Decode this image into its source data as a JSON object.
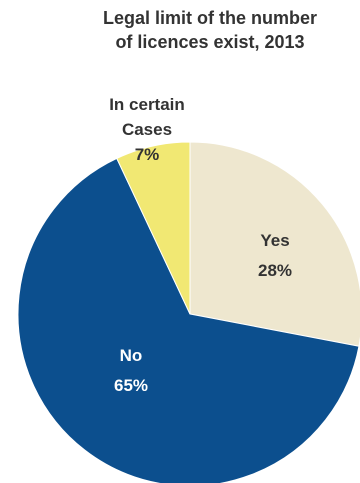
{
  "chart_data": {
    "type": "pie",
    "title": [
      "Legal limit of the number",
      "of licences exist, 2013"
    ],
    "slices": [
      {
        "label": "Yes",
        "value": 28,
        "value_label": "28%",
        "color": "#eee7cf",
        "text_color": "#333333"
      },
      {
        "label": "No",
        "value": 65,
        "value_label": "65%",
        "color": "#0c4f8e",
        "text_color": "#ffffff"
      },
      {
        "label": [
          "In certain",
          "Cases"
        ],
        "value": 7,
        "value_label": "7%",
        "color": "#f1e873",
        "text_color": "#333333"
      }
    ],
    "start": "12 o'clock",
    "direction": "clockwise",
    "legend": "none"
  }
}
